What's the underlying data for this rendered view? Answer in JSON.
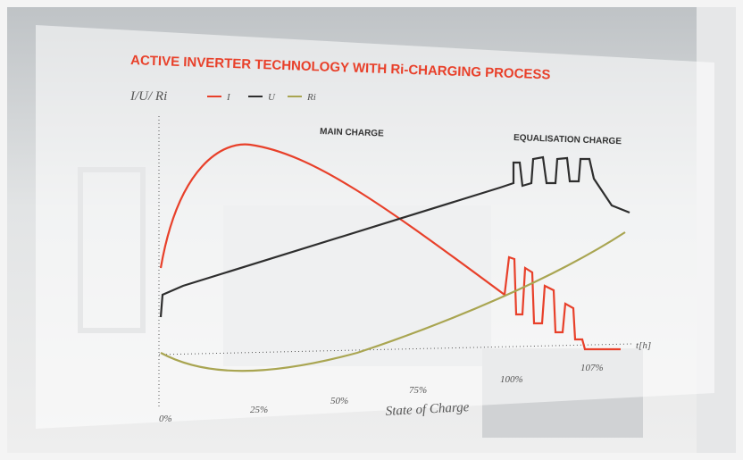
{
  "title": "ACTIVE INVERTER TECHNOLOGY WITH Ri-CHARGING PROCESS",
  "legend": {
    "axis_label": "I/U/ Ri",
    "items": [
      {
        "name": "I",
        "color": "#e8402a"
      },
      {
        "name": "U",
        "color": "#2e2e2e"
      },
      {
        "name": "Ri",
        "color": "#a9a551"
      }
    ]
  },
  "annotations": [
    "MAIN CHARGE",
    "EQUALISATION CHARGE"
  ],
  "x_axis": {
    "label": "State of Charge",
    "ticks": [
      "0%",
      "25%",
      "50%",
      "75%",
      "100%",
      "107%"
    ],
    "time_label": "t[h]"
  }
}
